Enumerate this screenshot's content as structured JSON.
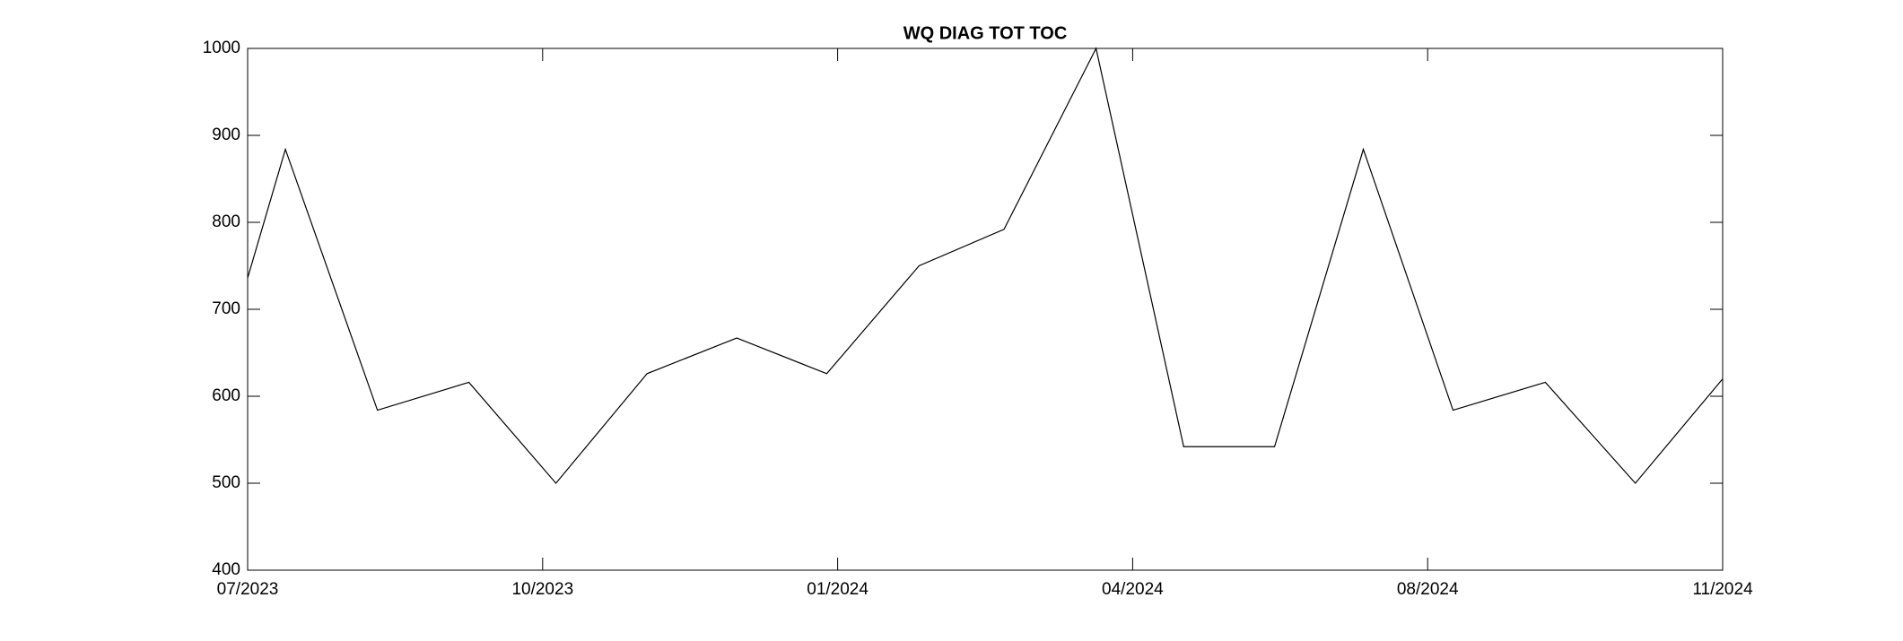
{
  "chart_data": {
    "type": "line",
    "title": "WQ DIAG TOT TOC",
    "x": [
      0,
      0.128,
      0.44,
      0.75,
      1.045,
      1.354,
      1.658,
      1.963,
      2.276,
      2.564,
      2.876,
      3.173,
      3.481,
      3.782,
      4.086,
      4.399,
      4.704,
      5.0
    ],
    "series": [
      {
        "color": "#000000",
        "values": [
          736,
          884,
          584,
          616,
          500,
          626,
          667,
          626,
          750,
          792,
          1000,
          542,
          542,
          884,
          584,
          616,
          500,
          620
        ]
      }
    ],
    "xlim": [
      0,
      5
    ],
    "xticks": [
      {
        "value": 0,
        "label": "07/2023"
      },
      {
        "value": 1,
        "label": "10/2023"
      },
      {
        "value": 2,
        "label": "01/2024"
      },
      {
        "value": 3,
        "label": "04/2024"
      },
      {
        "value": 4,
        "label": "08/2024"
      },
      {
        "value": 5,
        "label": "11/2024"
      }
    ],
    "ylim": [
      400,
      1000
    ],
    "yticks": [
      400,
      500,
      600,
      700,
      800,
      900,
      1000
    ],
    "grid": false
  }
}
